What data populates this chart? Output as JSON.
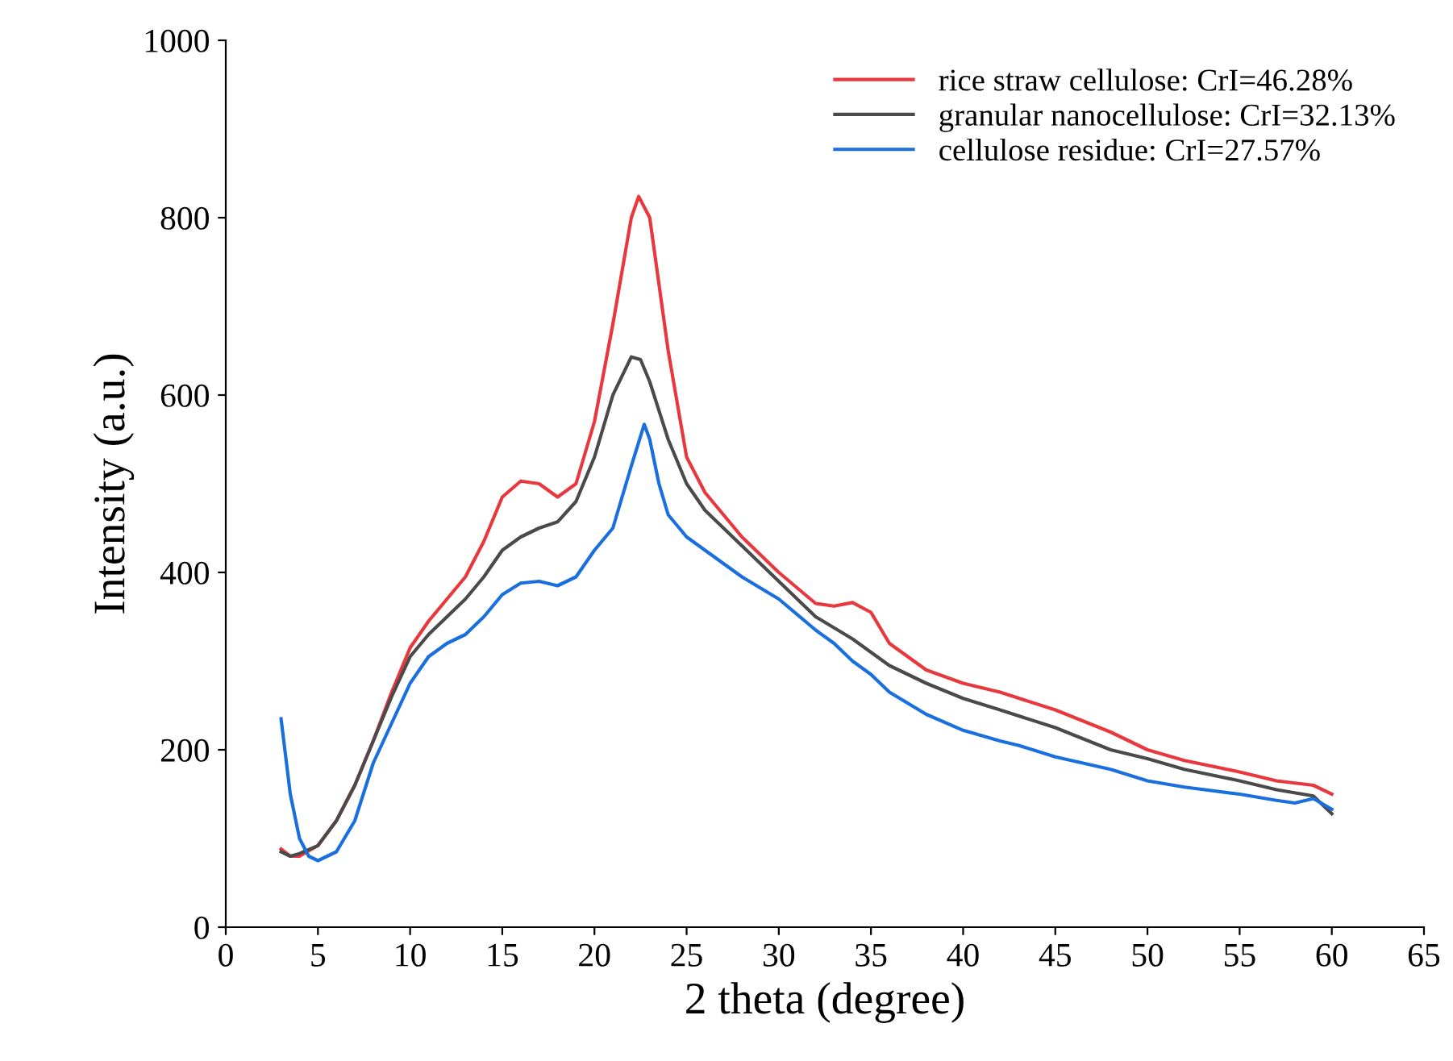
{
  "chart_data": {
    "type": "line",
    "xlabel": "2 theta (degree)",
    "ylabel": "Intensity (a.u.)",
    "xlim": [
      0,
      65
    ],
    "xticks": [
      0,
      5,
      10,
      15,
      20,
      25,
      30,
      35,
      40,
      45,
      50,
      55,
      60,
      65
    ],
    "ylim": [
      0,
      1000
    ],
    "yticks": [
      0,
      200,
      400,
      600,
      800,
      1000
    ],
    "grid": false,
    "legend": "top right",
    "marker": "none",
    "line_style": "solid",
    "series": [
      {
        "name": "rice straw cellulose: CrI=46.28%",
        "color": "#e8383d",
        "x": [
          3,
          3.5,
          4,
          5,
          6,
          7,
          8,
          9,
          10,
          11,
          12,
          13,
          14,
          15,
          16,
          17,
          18,
          19,
          20,
          21,
          22,
          22.4,
          23,
          24,
          25,
          26,
          28,
          30,
          32,
          33,
          34,
          35,
          36,
          38,
          40,
          42,
          45,
          48,
          50,
          52,
          55,
          57,
          59,
          60
        ],
        "values": [
          88,
          80,
          80,
          92,
          120,
          160,
          210,
          265,
          315,
          345,
          370,
          395,
          435,
          485,
          503,
          500,
          485,
          500,
          570,
          680,
          800,
          824,
          800,
          650,
          530,
          490,
          440,
          400,
          365,
          362,
          366,
          355,
          320,
          290,
          275,
          265,
          245,
          220,
          200,
          188,
          175,
          165,
          160,
          150
        ]
      },
      {
        "name": "granular nanocellulose: CrI=32.13%",
        "color": "#4a4a4a",
        "x": [
          3,
          3.5,
          4,
          5,
          6,
          7,
          8,
          9,
          10,
          11,
          12,
          13,
          14,
          15,
          16,
          17,
          18,
          19,
          20,
          21,
          22,
          22.5,
          23,
          24,
          25,
          26,
          28,
          30,
          32,
          34,
          36,
          38,
          40,
          42,
          45,
          48,
          50,
          52,
          55,
          57,
          59,
          60
        ],
        "values": [
          85,
          80,
          83,
          92,
          120,
          160,
          210,
          260,
          305,
          330,
          350,
          370,
          395,
          425,
          440,
          450,
          457,
          480,
          530,
          600,
          643,
          640,
          615,
          550,
          500,
          470,
          430,
          390,
          350,
          325,
          295,
          275,
          258,
          245,
          225,
          200,
          190,
          178,
          165,
          155,
          148,
          128
        ]
      },
      {
        "name": "cellulose residue: CrI=27.57%",
        "color": "#1a6fdf",
        "x": [
          3,
          3.5,
          4,
          4.5,
          5,
          6,
          7,
          8,
          9,
          10,
          11,
          12,
          13,
          14,
          15,
          16,
          17,
          18,
          19,
          20,
          21,
          22,
          22.7,
          23,
          23.5,
          24,
          25,
          26,
          27,
          28,
          30,
          32,
          33,
          34,
          35,
          36,
          38,
          40,
          42,
          43,
          45,
          48,
          50,
          52,
          55,
          57,
          58,
          59,
          60
        ],
        "values": [
          235,
          150,
          100,
          80,
          75,
          85,
          120,
          185,
          230,
          275,
          305,
          320,
          330,
          350,
          375,
          388,
          390,
          385,
          395,
          425,
          450,
          520,
          567,
          550,
          500,
          465,
          440,
          425,
          410,
          395,
          370,
          335,
          320,
          300,
          285,
          265,
          240,
          222,
          210,
          205,
          192,
          178,
          165,
          158,
          150,
          143,
          140,
          145,
          133
        ]
      }
    ]
  }
}
